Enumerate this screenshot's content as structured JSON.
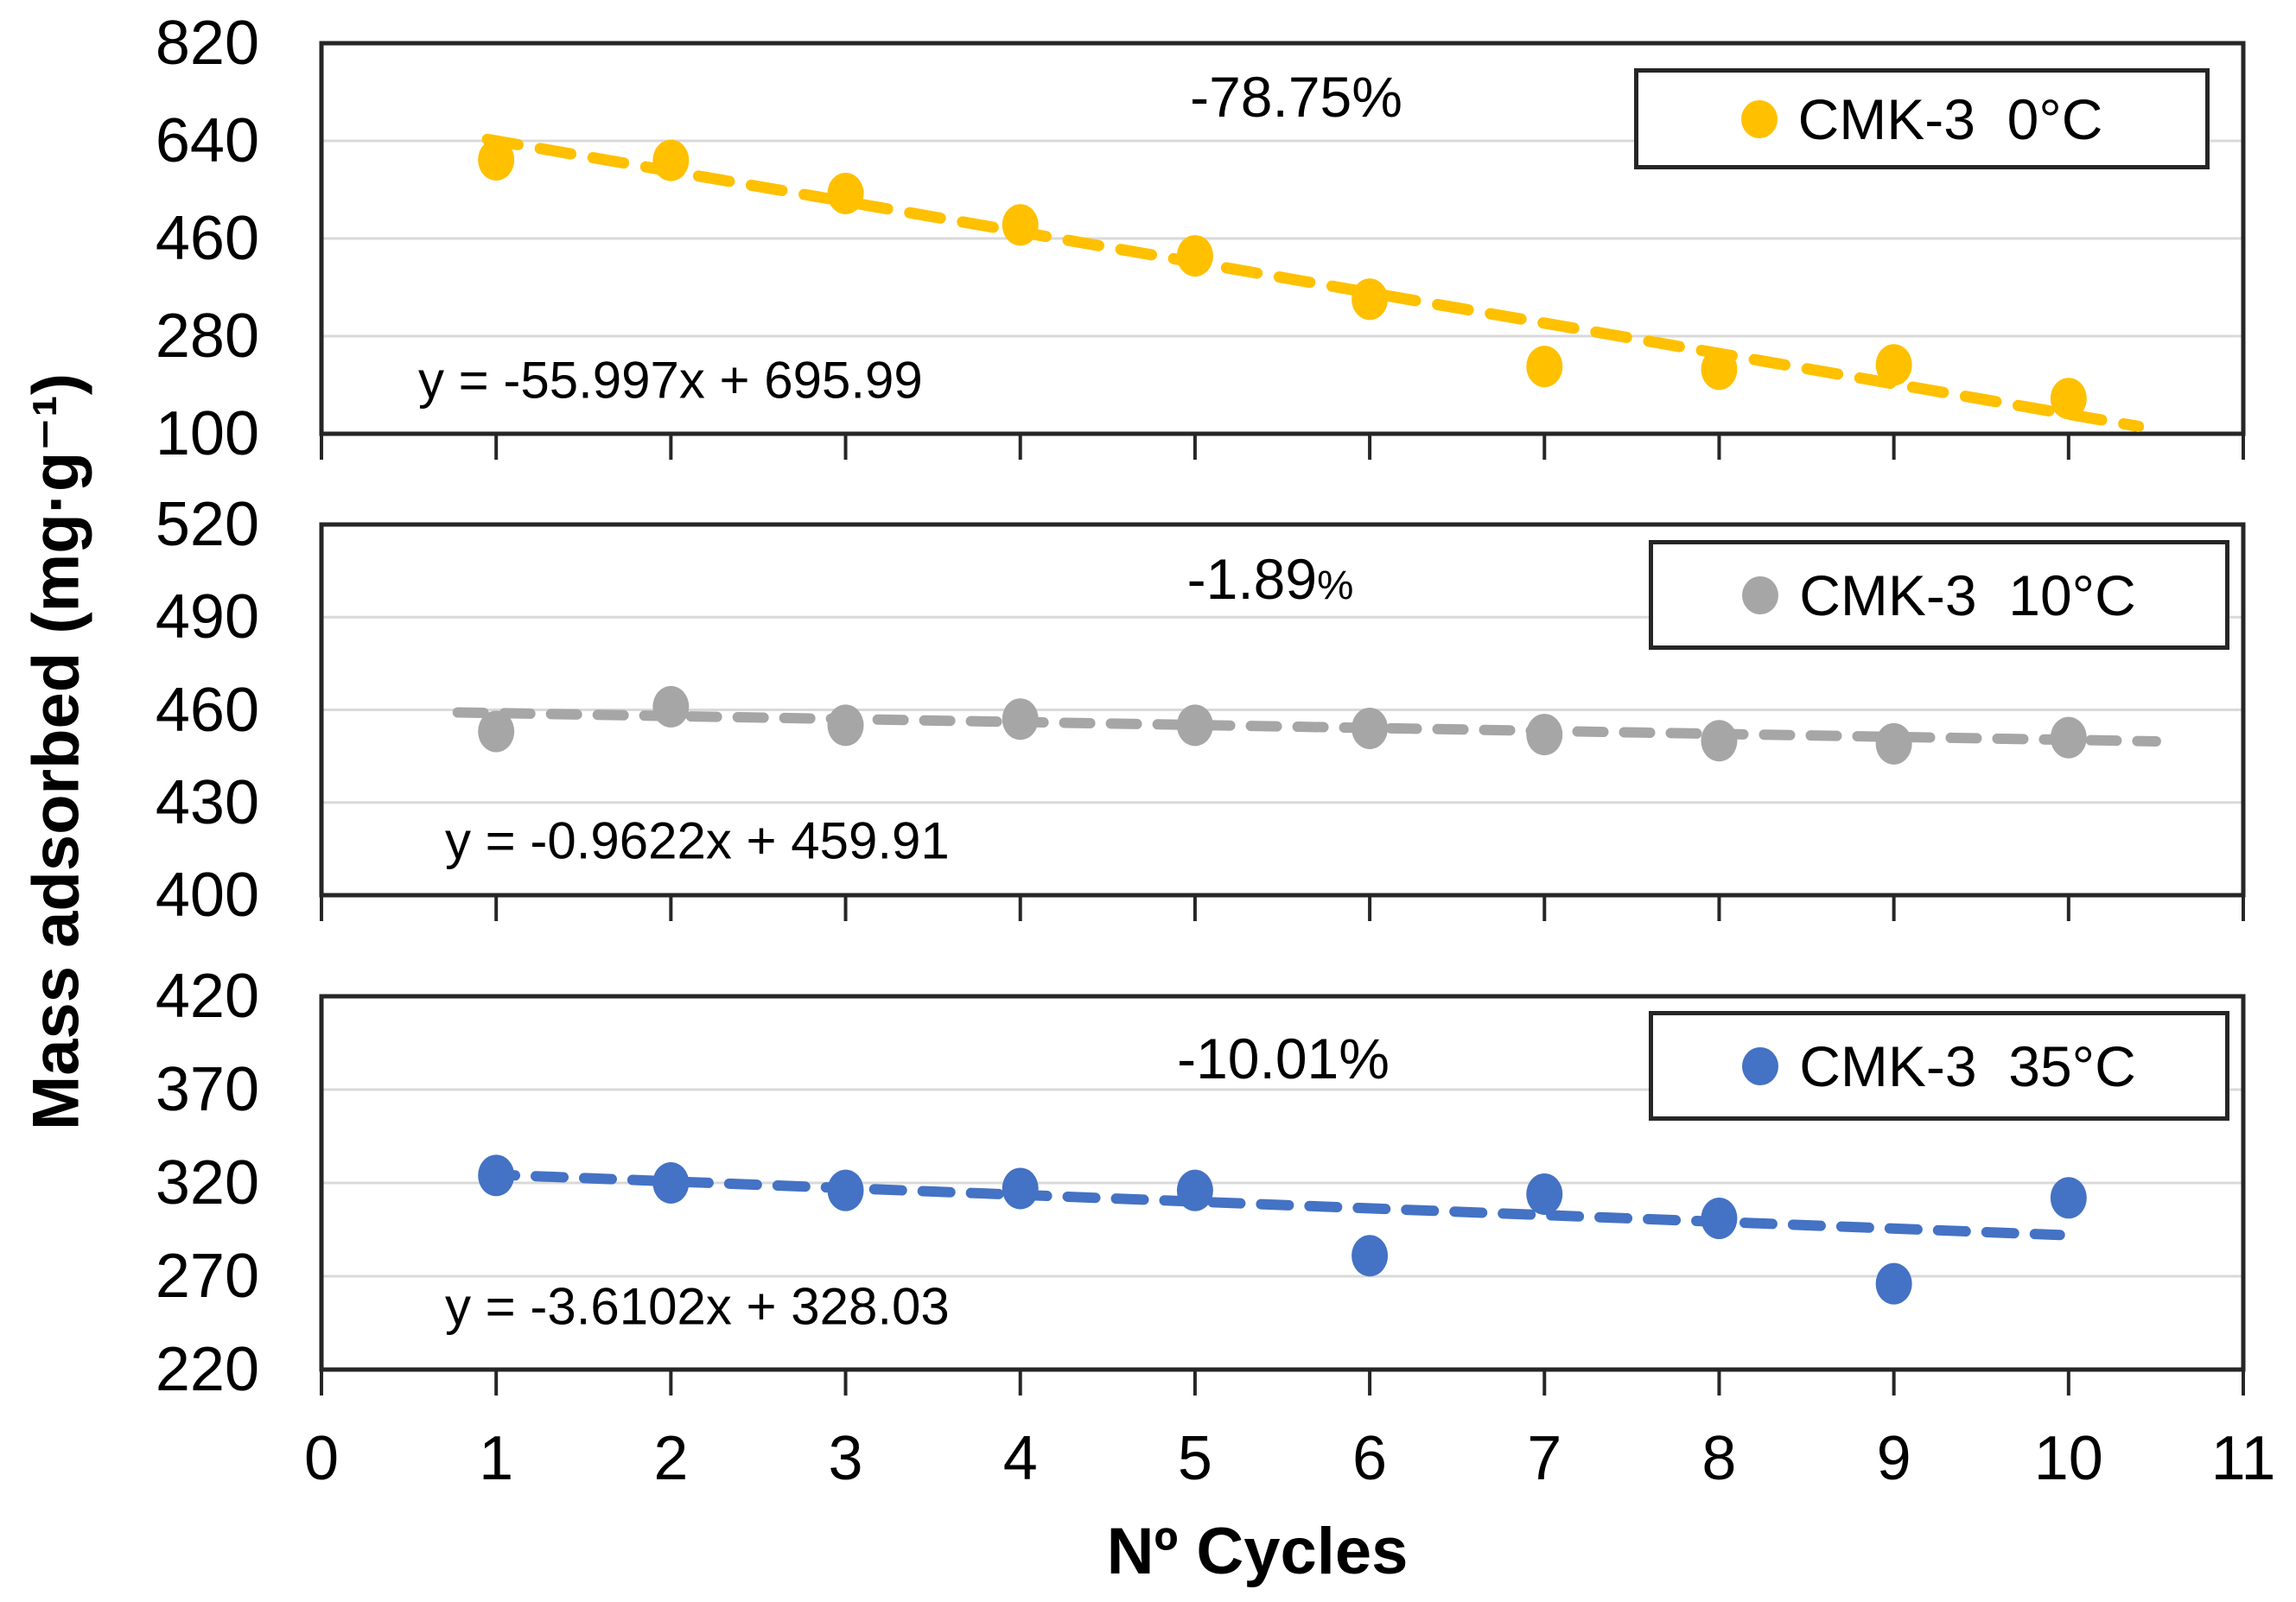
{
  "chart_data": {
    "type": "scatter",
    "title": "",
    "xlabel": "Nº Cycles",
    "ylabel": "Mass adsorbed (mg·g⁻¹)",
    "x": [
      1,
      2,
      3,
      4,
      5,
      6,
      7,
      8,
      9,
      10
    ],
    "x_ticks": [
      0,
      1,
      2,
      3,
      4,
      5,
      6,
      7,
      8,
      9,
      10,
      11
    ],
    "x_range": [
      0,
      11
    ],
    "grid": true,
    "legend_position": "top-right",
    "panels": [
      {
        "series": "CMK-3  0°C",
        "color": "#FFC000",
        "values": [
          605,
          604,
          543,
          485,
          428,
          348,
          224,
          219,
          227,
          165
        ],
        "y_ticks": [
          820,
          640,
          460,
          280,
          100
        ],
        "y_range": [
          100,
          820
        ],
        "trend": {
          "equation": "y = -55.997x + 695.99",
          "slope": -55.997,
          "intercept": 695.99,
          "x_start": 0.95,
          "x_end": 10.4
        },
        "annotation": {
          "value": "-78.75",
          "pct": "%",
          "small_pct": false
        }
      },
      {
        "series": "CMK-3  10°C",
        "color": "#A6A6A6",
        "values": [
          453,
          461,
          455,
          457,
          455,
          454,
          452,
          450,
          449,
          451
        ],
        "y_ticks": [
          520,
          490,
          460,
          430,
          400
        ],
        "y_range": [
          400,
          520
        ],
        "trend": {
          "equation": "y = -0.9622x + 459.91",
          "slope": -0.9622,
          "intercept": 459.91,
          "x_start": 0.78,
          "x_end": 10.5
        },
        "annotation": {
          "value": "-1.89",
          "pct": "%",
          "small_pct": true
        }
      },
      {
        "series": "CMK-3  35°C",
        "color": "#4472C4",
        "values": [
          324,
          320,
          316,
          317,
          316,
          281,
          314,
          301,
          266,
          312
        ],
        "y_ticks": [
          420,
          370,
          320,
          270,
          220
        ],
        "y_range": [
          220,
          420
        ],
        "trend": {
          "equation": "y = -3.6102x + 328.03",
          "slope": -3.6102,
          "intercept": 328.03,
          "x_start": 0.95,
          "x_end": 9.95
        },
        "annotation": {
          "value": "-10.01",
          "pct": "%",
          "small_pct": false
        }
      }
    ]
  },
  "colors": {
    "background": "#FFFFFF",
    "gridline": "#D9D9D9",
    "border": "#262626",
    "text": "#000000"
  }
}
